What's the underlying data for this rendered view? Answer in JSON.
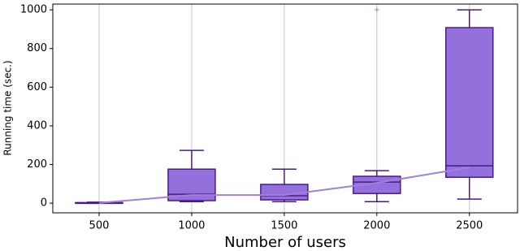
{
  "chart_data": {
    "type": "box",
    "xlabel": "Number of users",
    "ylabel": "Running time (sec.)",
    "x": [
      500,
      1000,
      1500,
      2000,
      2500
    ],
    "boxes": [
      {
        "min": 0,
        "q1": 0,
        "median": 1,
        "q3": 3,
        "max": 5
      },
      {
        "min": 8,
        "q1": 13,
        "median": 46,
        "q3": 176,
        "max": 273
      },
      {
        "min": 8,
        "q1": 17,
        "median": 38,
        "q3": 97,
        "max": 176
      },
      {
        "min": 8,
        "q1": 50,
        "median": 109,
        "q3": 139,
        "max": 168,
        "fliers": [
          1000
        ]
      },
      {
        "min": 21,
        "q1": 134,
        "median": 193,
        "q3": 908,
        "max": 1000
      }
    ],
    "line_values": [
      1,
      42,
      42,
      105,
      185
    ],
    "box_color": "#9370db",
    "edge_color": "#4b1a8a",
    "line_color": "#a27fdc",
    "xlim": [
      250,
      2760
    ],
    "xticks": [
      500,
      1000,
      1500,
      2000,
      2500
    ],
    "ylim": [
      -50,
      1030
    ],
    "yticks": [
      0,
      200,
      400,
      600,
      800,
      1000
    ],
    "grid": "x"
  }
}
